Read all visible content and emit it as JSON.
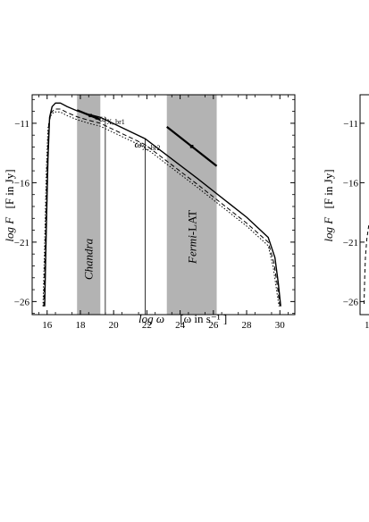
{
  "chart_data": [
    {
      "type": "line",
      "title": "",
      "xlabel_main": "log ω",
      "xlabel_unit": "[ω in s⁻¹ ]",
      "ylabel_main": "log F",
      "ylabel_unit": "[F in Jy]",
      "xlim": [
        15.1,
        30.9
      ],
      "ylim": [
        -27.1,
        -8.6
      ],
      "x_ticks": [
        16,
        18,
        20,
        22,
        24,
        26,
        28,
        30
      ],
      "y_ticks": [
        -11,
        -16,
        -21,
        -26
      ],
      "bands": [
        {
          "label": "Chandra",
          "x_range": [
            17.8,
            19.2
          ]
        },
        {
          "label_italic": "Fermi",
          "label_rest": "-LAT",
          "x_range": [
            23.2,
            26.2
          ]
        }
      ],
      "breaks": [
        {
          "label": "ω",
          "sub": "X, br1",
          "x": 19.5
        },
        {
          "label": "ω",
          "sub": "X, br2",
          "x": 21.9
        }
      ],
      "series": [
        {
          "style": "solid",
          "x": [
            15.85,
            15.95,
            16.05,
            16.15,
            16.3,
            16.5,
            16.8,
            17.2,
            17.8,
            18.5,
            19.2,
            19.5,
            21.9,
            25,
            28,
            29.3,
            29.7,
            29.9,
            30.05
          ],
          "y": [
            -26.4,
            -20,
            -14,
            -10.5,
            -9.6,
            -9.3,
            -9.3,
            -9.6,
            -9.95,
            -10.25,
            -10.5,
            -10.7,
            -12.3,
            -15.6,
            -18.9,
            -20.6,
            -22.3,
            -24.4,
            -26.4
          ]
        },
        {
          "style": "dashed",
          "x": [
            15.8,
            15.9,
            16.0,
            16.1,
            16.25,
            16.45,
            16.8,
            17.2,
            17.8,
            18.5,
            19.2,
            19.5,
            21.9,
            25,
            28,
            29.3,
            29.65,
            29.85,
            30.0
          ],
          "y": [
            -26.4,
            -20.5,
            -14.5,
            -11,
            -10.1,
            -9.8,
            -9.8,
            -10.1,
            -10.45,
            -10.75,
            -11,
            -11.2,
            -12.8,
            -16.1,
            -19.4,
            -21,
            -22.8,
            -24.7,
            -26.4
          ]
        },
        {
          "style": "dotted",
          "x": [
            15.75,
            15.85,
            15.95,
            16.05,
            16.2,
            16.4,
            16.8,
            17.2,
            17.8,
            18.5,
            19.2,
            19.5,
            21.9,
            25,
            28,
            29.3,
            29.6,
            29.8,
            29.95
          ],
          "y": [
            -26.4,
            -21,
            -15,
            -11.4,
            -10.4,
            -10.05,
            -10.05,
            -10.35,
            -10.7,
            -11,
            -11.25,
            -11.45,
            -13.05,
            -16.35,
            -19.65,
            -21.3,
            -23.1,
            -25,
            -26.4
          ]
        }
      ],
      "data_segments": [
        {
          "x": [
            17.8,
            19.2
          ],
          "y": [
            -9.9,
            -10.7
          ]
        },
        {
          "x": [
            23.2,
            26.2
          ],
          "y": [
            -11.3,
            -14.6
          ]
        }
      ],
      "data_points": [
        {
          "x": 18.6,
          "y": -10.35
        },
        {
          "x": 19.0,
          "y": -10.55
        },
        {
          "x": 24.7,
          "y": -12.95
        }
      ]
    },
    {
      "type": "line",
      "partial": true,
      "ylabel_main": "log F",
      "ylabel_unit": "[F in Jy]",
      "y_ticks": [
        -11,
        -16,
        -21,
        -26
      ],
      "x_ticks_visible": [
        "1"
      ]
    }
  ]
}
